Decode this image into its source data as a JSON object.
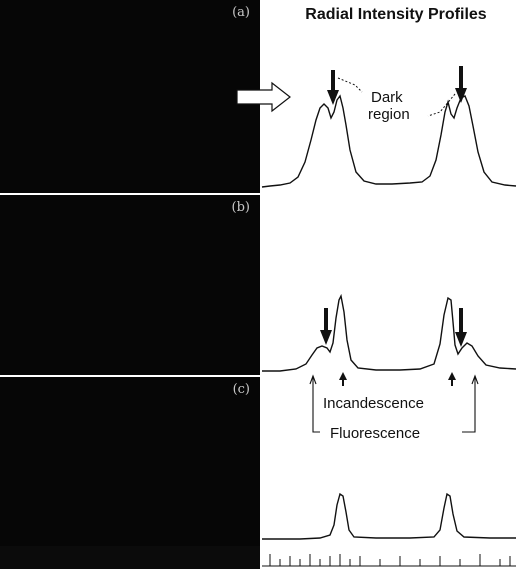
{
  "figure": {
    "panel_labels": [
      "(a)",
      "(b)",
      "(c)"
    ],
    "title": "Radial Intensity Profiles",
    "annotations": {
      "dark_region_line1": "Dark",
      "dark_region_line2": "region",
      "incandescence": "Incandescence",
      "fluorescence": "Fluorescence"
    }
  }
}
